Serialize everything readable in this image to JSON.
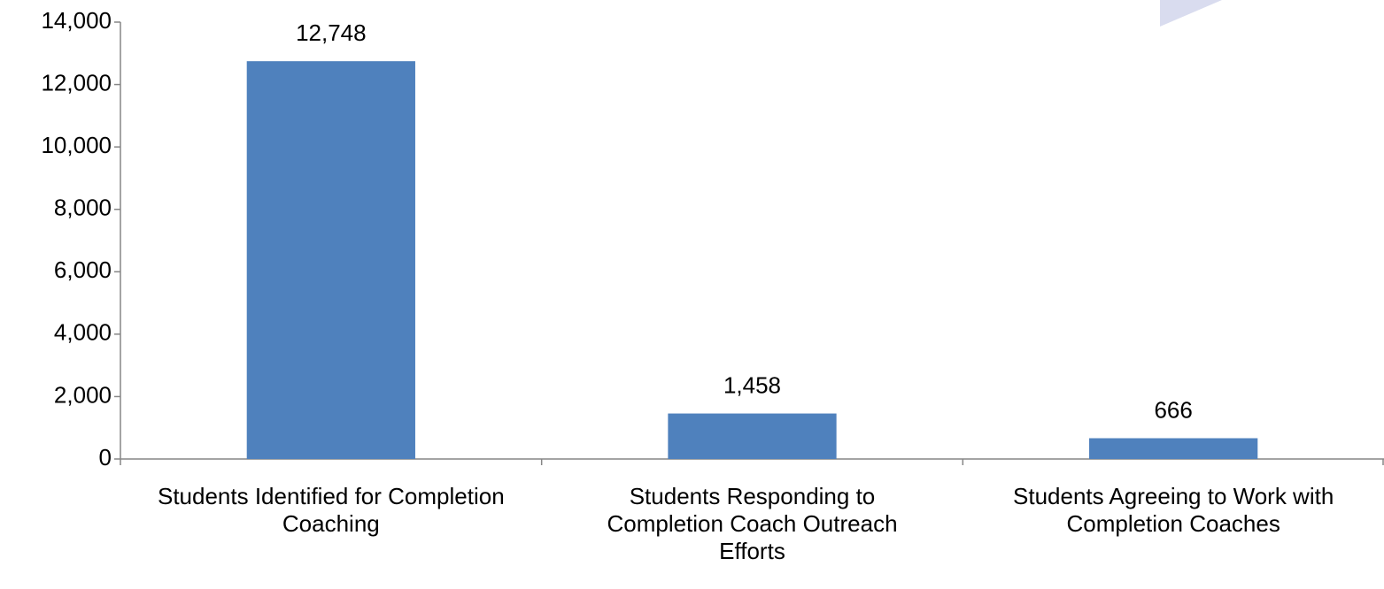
{
  "chart_data": {
    "type": "bar",
    "categories": [
      "Students Identified for Completion Coaching",
      "Students Responding to Completion Coach Outreach Efforts",
      "Students Agreeing to Work with Completion Coaches"
    ],
    "values": [
      12748,
      1458,
      666
    ],
    "value_labels": [
      "12,748",
      "1,458",
      "666"
    ],
    "color": "#4f81bd",
    "ylim": [
      0,
      14000
    ],
    "yticks": [
      0,
      {
        "value": 2000,
        "label": "2,000"
      },
      {
        "value": 4000,
        "label": "4,000"
      },
      {
        "value": 6000,
        "label": "6,000"
      },
      {
        "value": 8000,
        "label": "8,000"
      },
      {
        "value": 10000,
        "label": "10,000"
      },
      {
        "value": 12000,
        "label": "12,000"
      },
      {
        "value": 14000,
        "label": "14,000"
      }
    ],
    "grid": false
  }
}
